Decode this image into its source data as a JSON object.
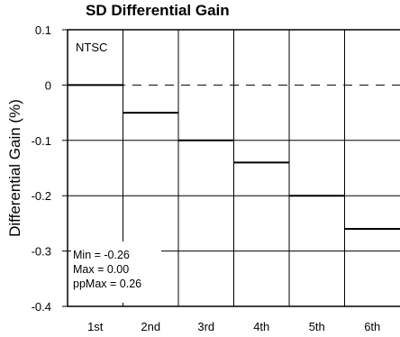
{
  "chart_data": {
    "type": "step",
    "title": "SD Differential Gain",
    "ylabel": "Differential Gain (%)",
    "xlabel": "",
    "categories": [
      "1st",
      "2nd",
      "3rd",
      "4th",
      "5th",
      "6th"
    ],
    "values": [
      0.0,
      -0.05,
      -0.1,
      -0.14,
      -0.2,
      -0.26
    ],
    "ylim": [
      -0.4,
      0.1
    ],
    "yticks": [
      "0.1",
      "0",
      "-0.1",
      "-0.2",
      "-0.3",
      "-0.4"
    ],
    "grid": true,
    "reference_line": {
      "y": 0,
      "style": "dashed"
    },
    "standard_label": "NTSC",
    "stats": {
      "min": "Min = -0.26",
      "max": "Max = 0.00",
      "ppmax": "ppMax = 0.26"
    }
  }
}
